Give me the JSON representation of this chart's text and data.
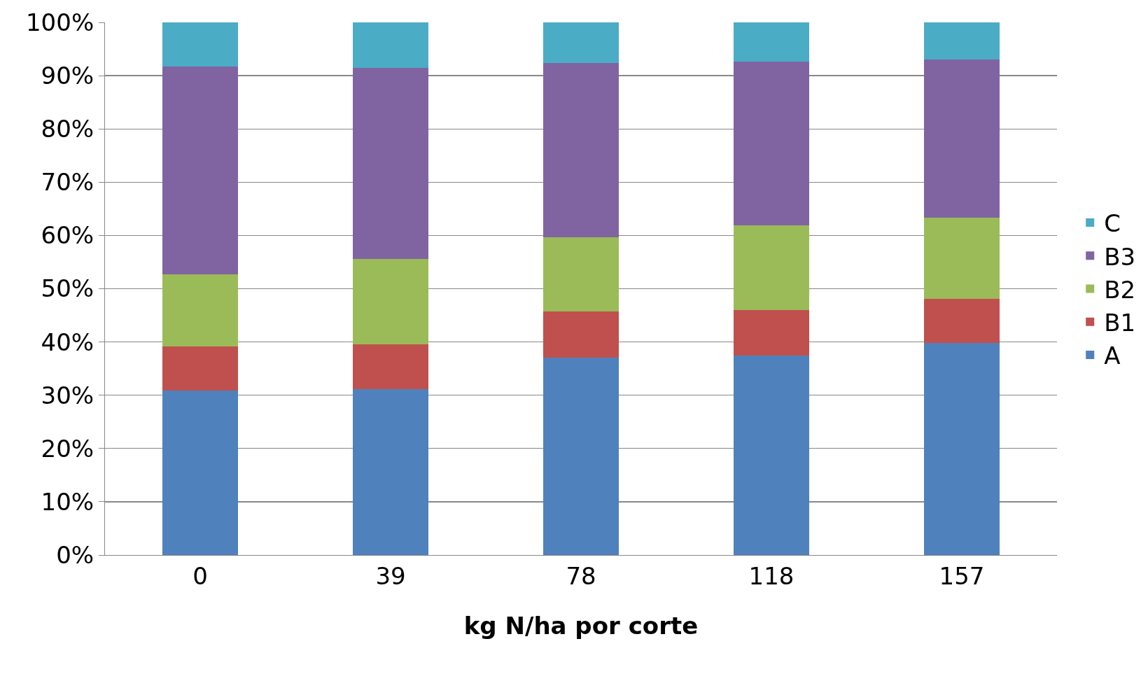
{
  "chart_data": {
    "type": "bar",
    "stacked": true,
    "xlabel": "kg N/ha por corte",
    "categories": [
      "0",
      "39",
      "78",
      "118",
      "157"
    ],
    "series": [
      {
        "name": "A",
        "color": "#4f81bd",
        "values": [
          30.9,
          31.1,
          37.0,
          37.5,
          39.8
        ]
      },
      {
        "name": "B1",
        "color": "#c0504d",
        "values": [
          8.2,
          8.4,
          8.7,
          8.5,
          8.3
        ]
      },
      {
        "name": "B2",
        "color": "#9bbb59",
        "values": [
          13.6,
          16.1,
          14.0,
          15.9,
          15.2
        ]
      },
      {
        "name": "B3",
        "color": "#8064a2",
        "values": [
          39.0,
          35.8,
          32.7,
          30.8,
          29.7
        ]
      },
      {
        "name": "C",
        "color": "#4bacc6",
        "values": [
          8.3,
          8.6,
          7.6,
          7.3,
          7.0
        ]
      }
    ],
    "ylim": [
      0,
      100
    ],
    "yticks": [
      {
        "value": 0,
        "label": "0%"
      },
      {
        "value": 10,
        "label": "10%"
      },
      {
        "value": 20,
        "label": "20%"
      },
      {
        "value": 30,
        "label": "30%"
      },
      {
        "value": 40,
        "label": "40%"
      },
      {
        "value": 50,
        "label": "50%"
      },
      {
        "value": 60,
        "label": "60%"
      },
      {
        "value": 70,
        "label": "70%"
      },
      {
        "value": 80,
        "label": "80%"
      },
      {
        "value": 90,
        "label": "90%"
      },
      {
        "value": 100,
        "label": "100%"
      }
    ],
    "grid": "y",
    "legend": "right"
  }
}
